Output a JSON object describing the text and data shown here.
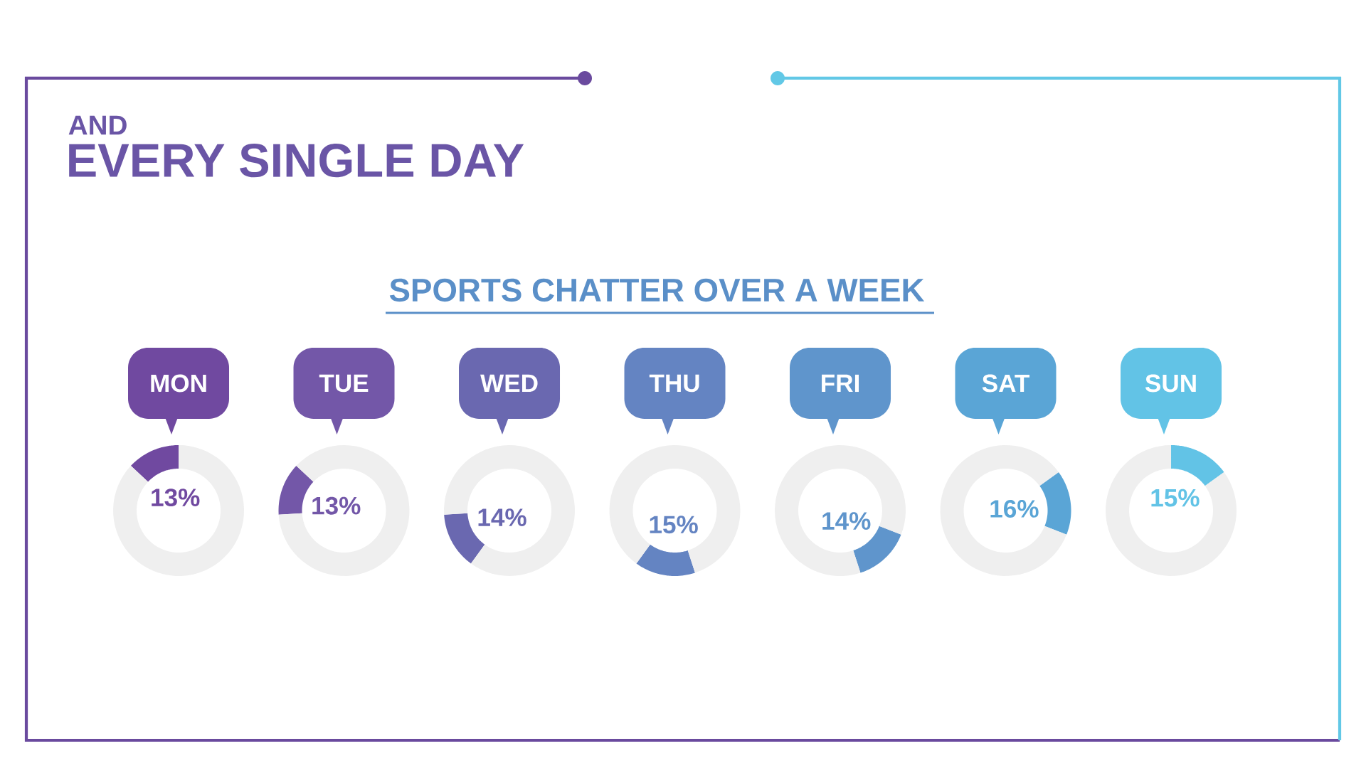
{
  "chart_data": [
    {
      "type": "other",
      "title": "SPORTS CHATTER OVER A WEEK",
      "annotations": [
        "AND",
        "EVERY SINGLE DAY"
      ]
    },
    {
      "type": "donut",
      "title": "MON",
      "categories": [
        null,
        null
      ],
      "values": [
        13,
        87
      ],
      "colors": [
        "#7049a0",
        "#efefef"
      ],
      "value_labels": [
        "13%",
        null
      ]
    },
    {
      "type": "donut",
      "title": "TUE",
      "categories": [
        null,
        null
      ],
      "values": [
        13,
        87
      ],
      "colors": [
        "#7357a8",
        "#efefef"
      ],
      "value_labels": [
        "13%",
        null
      ]
    },
    {
      "type": "donut",
      "title": "WED",
      "categories": [
        null,
        null
      ],
      "values": [
        14,
        86
      ],
      "colors": [
        "#6a68b0",
        "#efefef"
      ],
      "value_labels": [
        "14%",
        null
      ]
    },
    {
      "type": "donut",
      "title": "THU",
      "categories": [
        null,
        null
      ],
      "values": [
        15,
        85
      ],
      "colors": [
        "#6484c2",
        "#efefef"
      ],
      "value_labels": [
        "15%",
        null
      ]
    },
    {
      "type": "donut",
      "title": "FRI",
      "categories": [
        null,
        null
      ],
      "values": [
        14,
        86
      ],
      "colors": [
        "#5f95cc",
        "#efefef"
      ],
      "value_labels": [
        "14%",
        null
      ]
    },
    {
      "type": "donut",
      "title": "SAT",
      "categories": [
        null,
        null
      ],
      "values": [
        16,
        84
      ],
      "colors": [
        "#5aa5d6",
        "#efefef"
      ],
      "value_labels": [
        "16%",
        null
      ]
    },
    {
      "type": "donut",
      "title": "SUN",
      "categories": [
        null,
        null
      ],
      "values": [
        15,
        85
      ],
      "colors": [
        "#62c3e6",
        "#efefef"
      ],
      "value_labels": [
        "15%",
        null
      ]
    }
  ]
}
